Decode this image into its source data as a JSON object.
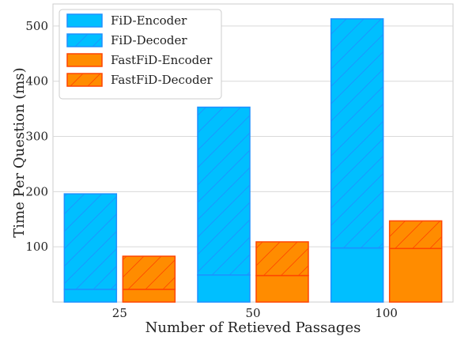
{
  "chart_data": {
    "type": "bar",
    "stacked": true,
    "categories": [
      "25",
      "50",
      "100"
    ],
    "groups": [
      {
        "name": "FiD",
        "fill_color": "#00bfff",
        "edge_color": "#1e90ff",
        "segments": [
          {
            "name": "FiD-Encoder",
            "values": [
              23,
              49,
              98
            ],
            "hatch": false
          },
          {
            "name": "FiD-Decoder",
            "values": [
              173,
              304,
              415
            ],
            "hatch": true
          }
        ]
      },
      {
        "name": "FastFiD",
        "fill_color": "#ff8c00",
        "edge_color": "#ff4500",
        "segments": [
          {
            "name": "FastFiD-Encoder",
            "values": [
              23,
              48,
              97
            ],
            "hatch": false
          },
          {
            "name": "FastFiD-Decoder",
            "values": [
              60,
              61,
              50
            ],
            "hatch": true
          }
        ]
      }
    ],
    "xlabel": "Number of Retieved Passages",
    "ylabel": "Time Per Question (ms)",
    "ylim": [
      0,
      540
    ],
    "yticks": [
      100,
      200,
      300,
      400,
      500
    ],
    "grid": true,
    "legend_position": "top-left",
    "legend": [
      "FiD-Encoder",
      "FiD-Decoder",
      "FastFiD-Encoder",
      "FastFiD-Decoder"
    ]
  }
}
